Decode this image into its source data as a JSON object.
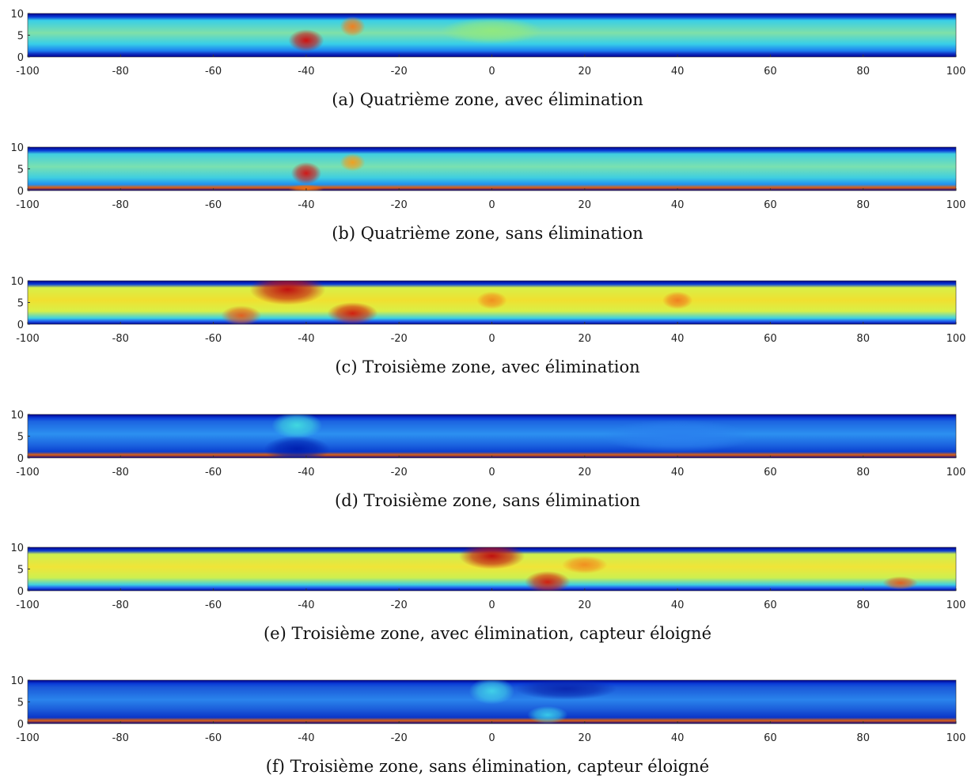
{
  "chart_data": [
    {
      "type": "heatmap",
      "caption": "(a) Quatrième zone, avec élimination",
      "xlim": [
        -100,
        100
      ],
      "xticks": [
        -100,
        -80,
        -60,
        -40,
        -20,
        0,
        20,
        40,
        60,
        80,
        100
      ],
      "ylim": [
        0,
        10
      ],
      "yticks": [
        0,
        5,
        10
      ]
    },
    {
      "type": "heatmap",
      "caption": "(b) Quatrième zone, sans élimination",
      "xlim": [
        -100,
        100
      ],
      "xticks": [
        -100,
        -80,
        -60,
        -40,
        -20,
        0,
        20,
        40,
        60,
        80,
        100
      ],
      "ylim": [
        0,
        10
      ],
      "yticks": [
        0,
        5,
        10
      ]
    },
    {
      "type": "heatmap",
      "caption": "(c) Troisième zone, avec élimination",
      "xlim": [
        -100,
        100
      ],
      "xticks": [
        -100,
        -80,
        -60,
        -40,
        -20,
        0,
        20,
        40,
        60,
        80,
        100
      ],
      "ylim": [
        0,
        10
      ],
      "yticks": [
        0,
        5,
        10
      ]
    },
    {
      "type": "heatmap",
      "caption": "(d) Troisième zone, sans élimination",
      "xlim": [
        -100,
        100
      ],
      "xticks": [
        -100,
        -80,
        -60,
        -40,
        -20,
        0,
        20,
        40,
        60,
        80,
        100
      ],
      "ylim": [
        0,
        10
      ],
      "yticks": [
        0,
        5,
        10
      ]
    },
    {
      "type": "heatmap",
      "caption": "(e) Troisième zone, avec élimination, capteur éloigné",
      "xlim": [
        -100,
        100
      ],
      "xticks": [
        -100,
        -80,
        -60,
        -40,
        -20,
        0,
        20,
        40,
        60,
        80,
        100
      ],
      "ylim": [
        0,
        10
      ],
      "yticks": [
        0,
        5,
        10
      ]
    },
    {
      "type": "heatmap",
      "caption": "(f) Troisième zone, sans élimination, capteur éloigné",
      "xlim": [
        -100,
        100
      ],
      "xticks": [
        -100,
        -80,
        -60,
        -40,
        -20,
        0,
        20,
        40,
        60,
        80,
        100
      ],
      "ylim": [
        0,
        10
      ],
      "yticks": [
        0,
        5,
        10
      ]
    }
  ]
}
